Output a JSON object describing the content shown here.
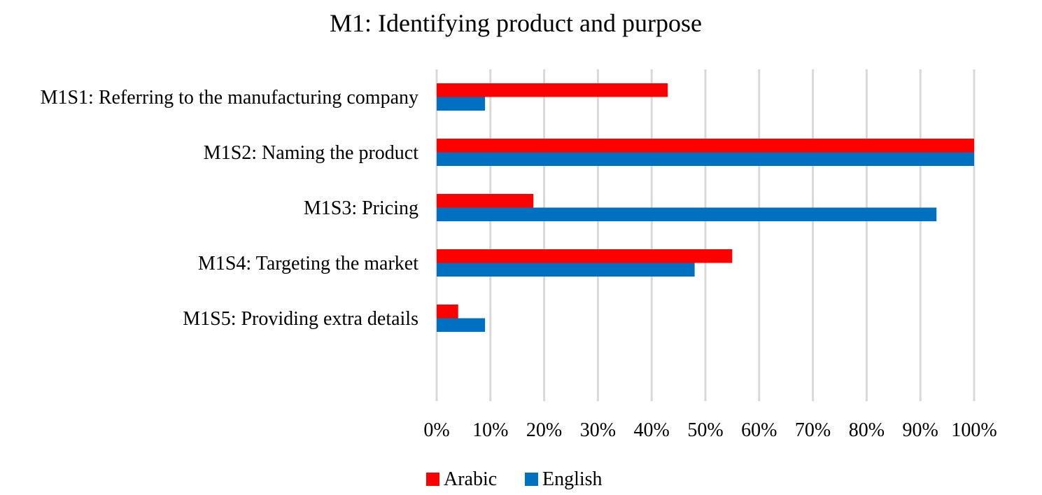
{
  "chart_data": {
    "type": "bar",
    "orientation": "horizontal",
    "title": "M1: Identifying product and purpose",
    "categories": [
      "M1S1: Referring to the manufacturing company",
      "M1S2: Naming the product",
      "M1S3: Pricing",
      "M1S4: Targeting the market",
      "M1S5: Providing extra details"
    ],
    "series": [
      {
        "name": "Arabic",
        "color": "#ff0000",
        "values": [
          43,
          100,
          18,
          55,
          4
        ]
      },
      {
        "name": "English",
        "color": "#0070c0",
        "values": [
          9,
          100,
          93,
          48,
          9
        ]
      }
    ],
    "xlim": [
      0,
      100
    ],
    "x_ticks": [
      "0%",
      "10%",
      "20%",
      "30%",
      "40%",
      "50%",
      "60%",
      "70%",
      "80%",
      "90%",
      "100%"
    ],
    "xlabel": "",
    "ylabel": "",
    "grid": true,
    "legend_position": "bottom"
  }
}
